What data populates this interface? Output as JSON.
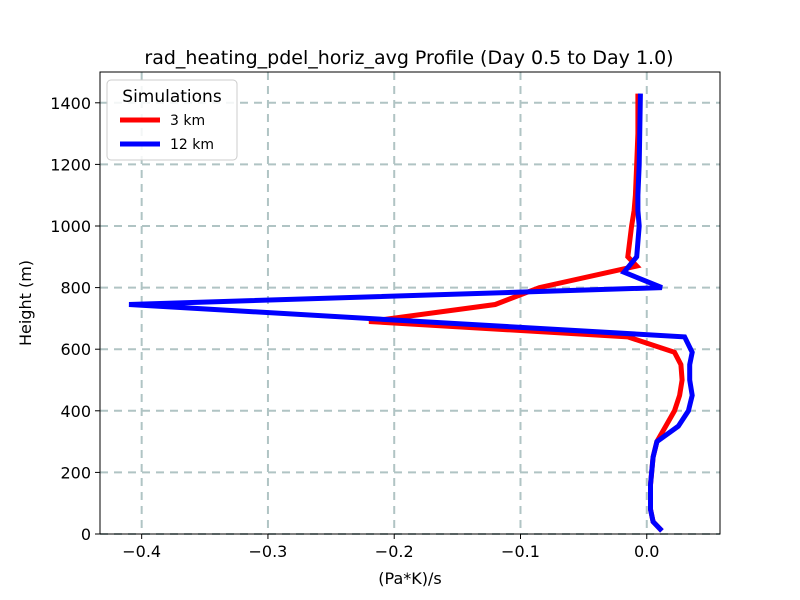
{
  "chart_data": {
    "type": "line",
    "title": "rad_heating_pdel_horiz_avg Profile (Day 0.5 to Day 1.0)",
    "xlabel": "(Pa*K)/s",
    "ylabel": "Height (m)",
    "xlim": [
      -0.433,
      0.058
    ],
    "ylim": [
      0,
      1500
    ],
    "xticks": [
      -0.4,
      -0.3,
      -0.2,
      -0.1,
      0.0
    ],
    "xtick_labels": [
      "−0.4",
      "−0.3",
      "−0.2",
      "−0.1",
      "0.0"
    ],
    "yticks": [
      0,
      200,
      400,
      600,
      800,
      1000,
      1200,
      1400
    ],
    "ytick_labels": [
      "0",
      "200",
      "400",
      "600",
      "800",
      "1000",
      "1200",
      "1400"
    ],
    "grid": true,
    "legend": {
      "title": "Simulations",
      "position": "top-left"
    },
    "series": [
      {
        "name": "3 km",
        "color": "#ff0000",
        "x": [
          0.012,
          0.005,
          0.003,
          0.003,
          0.005,
          0.008,
          0.015,
          0.022,
          0.026,
          0.028,
          0.027,
          0.022,
          -0.015,
          -0.22,
          -0.12,
          -0.085,
          -0.03,
          -0.008,
          -0.015,
          -0.012,
          -0.01,
          -0.009,
          -0.008,
          -0.007,
          -0.007
        ],
        "y": [
          10,
          40,
          80,
          160,
          250,
          300,
          350,
          400,
          450,
          500,
          550,
          590,
          640,
          690,
          745,
          800,
          850,
          870,
          900,
          1000,
          1050,
          1100,
          1200,
          1300,
          1430
        ]
      },
      {
        "name": "12 km",
        "color": "#0000ff",
        "x": [
          0.012,
          0.005,
          0.003,
          0.003,
          0.005,
          0.008,
          0.025,
          0.033,
          0.036,
          0.034,
          0.034,
          0.036,
          0.03,
          -0.41,
          0.012,
          -0.018,
          -0.008,
          -0.006,
          -0.007,
          -0.007,
          -0.006,
          -0.005
        ],
        "y": [
          10,
          40,
          80,
          160,
          250,
          300,
          350,
          400,
          450,
          500,
          550,
          590,
          640,
          745,
          800,
          850,
          900,
          1000,
          1050,
          1100,
          1200,
          1430
        ]
      }
    ]
  }
}
